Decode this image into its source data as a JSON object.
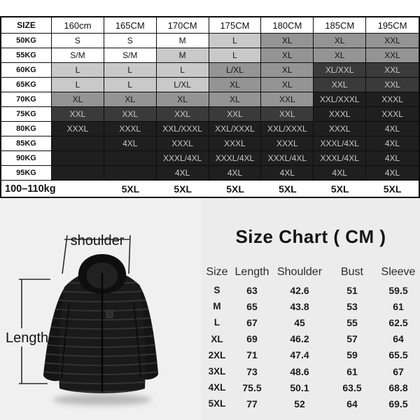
{
  "size_table": {
    "corner_label": "SIZE",
    "height_headers": [
      "160cm",
      "165CM",
      "170CM",
      "175CM",
      "180CM",
      "185CM",
      "195CM"
    ],
    "shade_colors": {
      "w": "#ffffff",
      "l": "#c9c9c9",
      "m": "#949494",
      "d": "#3a3a3a",
      "b": "#1f1f1f"
    },
    "dark_text_color": "#c9c9c9",
    "light_text_color": "#161616",
    "rows": [
      {
        "label": "50KG",
        "cells": [
          [
            "S",
            "w"
          ],
          [
            "S",
            "w"
          ],
          [
            "M",
            "w"
          ],
          [
            "L",
            "l"
          ],
          [
            "XL",
            "m"
          ],
          [
            "XL",
            "m"
          ],
          [
            "XXL",
            "m"
          ]
        ]
      },
      {
        "label": "55KG",
        "cells": [
          [
            "S/M",
            "w"
          ],
          [
            "S/M",
            "w"
          ],
          [
            "M",
            "l"
          ],
          [
            "L",
            "l"
          ],
          [
            "XL",
            "m"
          ],
          [
            "XL",
            "m"
          ],
          [
            "XXL",
            "m"
          ]
        ]
      },
      {
        "label": "60KG",
        "cells": [
          [
            "L",
            "l"
          ],
          [
            "L",
            "l"
          ],
          [
            "L",
            "l"
          ],
          [
            "L/XL",
            "m"
          ],
          [
            "XL",
            "m"
          ],
          [
            "XL/XXL",
            "d"
          ],
          [
            "XXL",
            "d"
          ]
        ]
      },
      {
        "label": "65KG",
        "cells": [
          [
            "L",
            "l"
          ],
          [
            "L",
            "l"
          ],
          [
            "L/XL",
            "l"
          ],
          [
            "XL",
            "m"
          ],
          [
            "XL",
            "m"
          ],
          [
            "XXL",
            "d"
          ],
          [
            "XXL",
            "d"
          ]
        ]
      },
      {
        "label": "70KG",
        "cells": [
          [
            "XL",
            "m"
          ],
          [
            "XL",
            "m"
          ],
          [
            "XL",
            "m"
          ],
          [
            "XL",
            "m"
          ],
          [
            "XXL",
            "m"
          ],
          [
            "XXL/XXXL",
            "b"
          ],
          [
            "XXXL",
            "b"
          ]
        ]
      },
      {
        "label": "75KG",
        "cells": [
          [
            "XXL",
            "d"
          ],
          [
            "XXL",
            "d"
          ],
          [
            "XXL",
            "d"
          ],
          [
            "XXL",
            "d"
          ],
          [
            "XXL",
            "d"
          ],
          [
            "XXXL",
            "b"
          ],
          [
            "XXXL",
            "b"
          ]
        ]
      },
      {
        "label": "80KG",
        "cells": [
          [
            "XXXL",
            "b"
          ],
          [
            "XXXL",
            "b"
          ],
          [
            "XXL/XXXL",
            "b"
          ],
          [
            "XXL/XXXL",
            "b"
          ],
          [
            "XXL/XXXL",
            "b"
          ],
          [
            "XXXL",
            "b"
          ],
          [
            "4XL",
            "b"
          ]
        ]
      },
      {
        "label": "85KG",
        "cells": [
          [
            "",
            "b"
          ],
          [
            "4XL",
            "b"
          ],
          [
            "XXXL",
            "b"
          ],
          [
            "XXXL",
            "b"
          ],
          [
            "XXXL",
            "b"
          ],
          [
            "XXXL/4XL",
            "b"
          ],
          [
            "4XL",
            "b"
          ]
        ]
      },
      {
        "label": "90KG",
        "cells": [
          [
            "",
            "b"
          ],
          [
            "",
            "b"
          ],
          [
            "XXXL/4XL",
            "b"
          ],
          [
            "XXXL/4XL",
            "b"
          ],
          [
            "XXXL/4XL",
            "b"
          ],
          [
            "XXXL/4XL",
            "b"
          ],
          [
            "4XL",
            "b"
          ]
        ]
      },
      {
        "label": "95KG",
        "cells": [
          [
            "",
            "b"
          ],
          [
            "",
            "b"
          ],
          [
            "4XL",
            "b"
          ],
          [
            "4XL",
            "b"
          ],
          [
            "4XL",
            "b"
          ],
          [
            "4XL",
            "b"
          ],
          [
            "4XL",
            "b"
          ]
        ]
      }
    ],
    "footer_row": {
      "label": "100–110kg",
      "values": [
        "5XL",
        "5XL",
        "5XL",
        "5XL",
        "5XL",
        "5XL"
      ]
    }
  },
  "product": {
    "shoulder_label": "shoulder",
    "length_label": "Length"
  },
  "measure_chart": {
    "title": "Size Chart ( CM )",
    "headers": [
      "Size",
      "Length",
      "Shoulder",
      "Bust",
      "Sleeve"
    ],
    "rows": [
      [
        "S",
        "63",
        "42.6",
        "51",
        "59.5"
      ],
      [
        "M",
        "65",
        "43.8",
        "53",
        "61"
      ],
      [
        "L",
        "67",
        "45",
        "55",
        "62.5"
      ],
      [
        "XL",
        "69",
        "46.2",
        "57",
        "64"
      ],
      [
        "2XL",
        "71",
        "47.4",
        "59",
        "65.5"
      ],
      [
        "3XL",
        "73",
        "48.6",
        "61",
        "67"
      ],
      [
        "4XL",
        "75.5",
        "50.1",
        "63.5",
        "68.8"
      ],
      [
        "5XL",
        "77",
        "52",
        "64",
        "69.5"
      ]
    ]
  }
}
